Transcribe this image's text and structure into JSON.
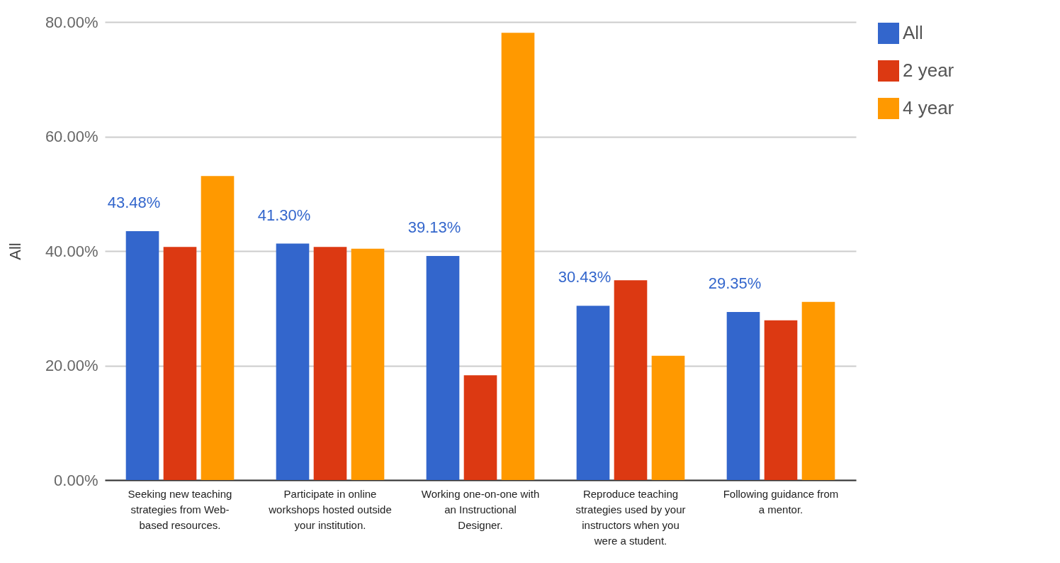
{
  "chart_data": {
    "type": "bar",
    "ylabel": "All",
    "categories": [
      "Seeking new teaching strategies from Web-based resources.",
      "Participate in online workshops hosted outside your institution.",
      "Working one-on-one with an Instructional Designer.",
      "Reproduce teaching strategies used by your instructors when you were a student.",
      "Following guidance from a mentor."
    ],
    "series": [
      {
        "name": "All",
        "color": "#3366cc",
        "values": [
          43.48,
          41.3,
          39.13,
          30.43,
          29.35
        ],
        "value_labels": [
          "43.48%",
          "41.30%",
          "39.13%",
          "30.43%",
          "29.35%"
        ]
      },
      {
        "name": "2 year",
        "color": "#dc3912",
        "values": [
          40.7,
          40.7,
          18.3,
          34.9,
          27.9
        ]
      },
      {
        "name": "4 year",
        "color": "#ff9900",
        "values": [
          53.1,
          40.4,
          78.1,
          21.7,
          31.1
        ]
      }
    ],
    "ylim": [
      0,
      80
    ],
    "yticks": [
      {
        "value": 0,
        "label": "0.00%"
      },
      {
        "value": 20,
        "label": "20.00%"
      },
      {
        "value": 40,
        "label": "40.00%"
      },
      {
        "value": 60,
        "label": "60.00%"
      },
      {
        "value": 80,
        "label": "80.00%"
      }
    ],
    "grid": "y",
    "legend": "top right"
  }
}
